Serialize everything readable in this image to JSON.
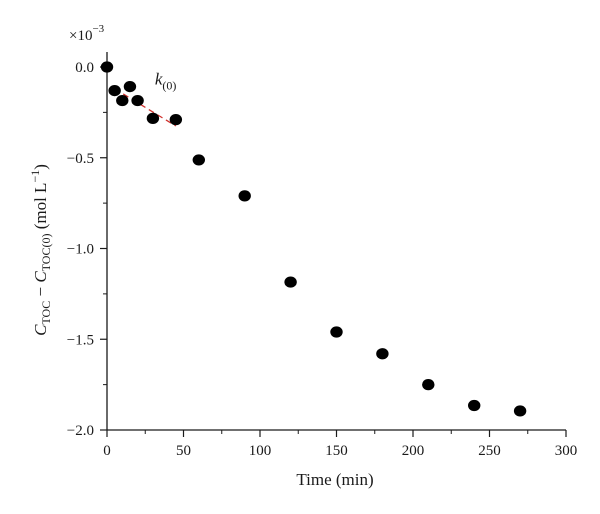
{
  "chart_data": {
    "type": "scatter",
    "xlabel": "Time (min)",
    "ylabel": {
      "C1": "C",
      "sub1": "TOC",
      "minus": " − ",
      "C2": "C",
      "sub2": "TOC(0)",
      "units_pre": " (mol L",
      "units_sup": "−1",
      "units_post": ")"
    },
    "y_multiplier_text": {
      "base": "×10",
      "exp": "−3"
    },
    "xlim": [
      0,
      300
    ],
    "ylim": [
      -2.0,
      0.0
    ],
    "x_ticks": [
      0,
      50,
      100,
      150,
      200,
      250,
      300
    ],
    "x_tick_labels": [
      "0",
      "50",
      "100",
      "150",
      "200",
      "250",
      "300"
    ],
    "y_ticks": [
      0.0,
      -0.5,
      -1.0,
      -1.5,
      -2.0
    ],
    "y_tick_labels": [
      "0.0",
      "−0.5",
      "−1.0",
      "−1.5",
      "−2.0"
    ],
    "series": [
      {
        "points": [
          {
            "x": 0,
            "y": 0.0
          },
          {
            "x": 5,
            "y": -0.13
          },
          {
            "x": 10,
            "y": -0.185
          },
          {
            "x": 15,
            "y": -0.108
          },
          {
            "x": 20,
            "y": -0.185
          },
          {
            "x": 30,
            "y": -0.283
          },
          {
            "x": 45,
            "y": -0.29
          },
          {
            "x": 60,
            "y": -0.512
          },
          {
            "x": 90,
            "y": -0.71
          },
          {
            "x": 120,
            "y": -1.185
          },
          {
            "x": 150,
            "y": -1.46
          },
          {
            "x": 180,
            "y": -1.58
          },
          {
            "x": 210,
            "y": -1.75
          },
          {
            "x": 240,
            "y": -1.865
          },
          {
            "x": 270,
            "y": -1.895
          }
        ]
      }
    ],
    "fit_line": {
      "x": [
        5,
        45
      ],
      "y": [
        -0.12,
        -0.325
      ],
      "color": "#d0302b",
      "style": "dashed"
    },
    "annotation": {
      "k": "k",
      "sub": "(0)",
      "x": 28,
      "y": -0.02
    },
    "colors": {
      "marker": "#000000",
      "axis": "#1a1a1a"
    },
    "grid": false
  }
}
